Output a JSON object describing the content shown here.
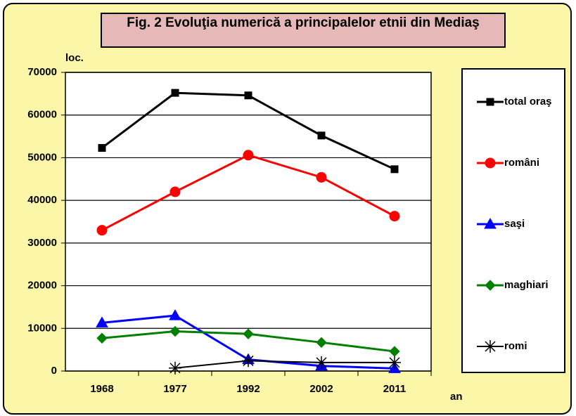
{
  "chart_data": {
    "type": "line",
    "title": "Fig. 2 Evoluţia numerică a principalelor etnii din Mediaş",
    "y_label": "loc.",
    "x_label": "an",
    "categories": [
      "1968",
      "1977",
      "1992",
      "2002",
      "2011"
    ],
    "series": [
      {
        "name": "total oraş",
        "color": "#000000",
        "marker": "square",
        "values": [
          52300,
          65200,
          64600,
          55200,
          47300
        ]
      },
      {
        "name": "români",
        "color": "#ff0000",
        "marker": "circle",
        "values": [
          33000,
          42000,
          50600,
          45400,
          36300
        ]
      },
      {
        "name": "saşi",
        "color": "#0000ff",
        "marker": "triangle",
        "values": [
          11300,
          13000,
          2700,
          1200,
          600
        ]
      },
      {
        "name": "maghiari",
        "color": "#008000",
        "marker": "diamond",
        "values": [
          7700,
          9300,
          8700,
          6700,
          4600
        ]
      },
      {
        "name": "romi",
        "color": "#000000",
        "marker": "asterisk",
        "values": [
          null,
          700,
          2400,
          2000,
          2000
        ]
      }
    ],
    "ylim": [
      0,
      70000
    ],
    "yticks": [
      0,
      10000,
      20000,
      30000,
      40000,
      50000,
      60000,
      70000
    ],
    "grid": true,
    "legend": "right"
  }
}
